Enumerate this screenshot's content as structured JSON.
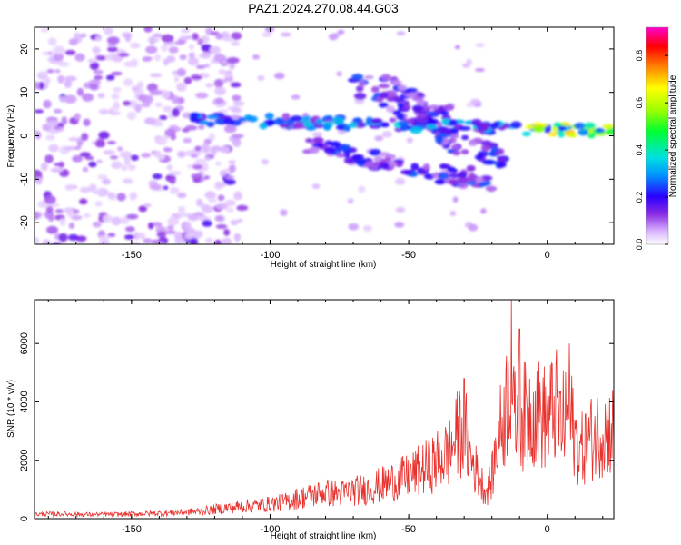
{
  "title": "PAZ1.2024.270.08.44.G03",
  "chart_data": [
    {
      "type": "heatmap",
      "xlabel": "Height of straight line (km)",
      "ylabel": "Frequency (Hz)",
      "xlim": [
        -185,
        24
      ],
      "ylim": [
        -25,
        25
      ],
      "xticks": [
        -150,
        -100,
        -50,
        0
      ],
      "yticks": [
        -20,
        -10,
        0,
        10,
        20
      ],
      "colorbar": {
        "label": "Normalized spectral amplitude",
        "range": [
          0,
          0.92
        ],
        "ticks": [
          0.0,
          0.2,
          0.4,
          0.6,
          0.8
        ],
        "colormap": "rainbow (white-purple-blue-cyan-green-yellow-red-magenta)"
      },
      "features": [
        {
          "name": "central tone",
          "x": [
            -128,
            24
          ],
          "y_start": 4,
          "y_end": 1,
          "peak_amplitude": 0.8
        },
        {
          "name": "upper scattered branches",
          "x": [
            -70,
            -15
          ],
          "y_start": 12,
          "y_end": -6
        },
        {
          "name": "lower branch",
          "x": [
            -90,
            -20
          ],
          "y_start": -2,
          "y_end": -11
        },
        {
          "name": "diffuse noise",
          "x": [
            -185,
            -120
          ],
          "y": [
            -25,
            25
          ],
          "amplitude": "low"
        }
      ]
    },
    {
      "type": "line",
      "xlabel": "Height of straight line (km)",
      "ylabel": "SNR (10 * v/v)",
      "xlim": [
        -185,
        24
      ],
      "ylim": [
        0,
        7500
      ],
      "xticks": [
        -150,
        -100,
        -50,
        0
      ],
      "yticks": [
        0,
        2000,
        4000,
        6000
      ],
      "color": "#e8302c",
      "x": [
        -185,
        -175,
        -165,
        -155,
        -145,
        -135,
        -125,
        -120,
        -115,
        -110,
        -105,
        -100,
        -95,
        -90,
        -85,
        -80,
        -75,
        -70,
        -65,
        -60,
        -55,
        -50,
        -45,
        -40,
        -35,
        -33,
        -30,
        -28,
        -25,
        -22,
        -20,
        -18,
        -15,
        -13,
        -12,
        -10,
        -8,
        -5,
        -3,
        0,
        3,
        5,
        8,
        10,
        12,
        15,
        18,
        20,
        24
      ],
      "y": [
        150,
        160,
        140,
        150,
        170,
        200,
        250,
        320,
        380,
        420,
        450,
        500,
        560,
        700,
        800,
        900,
        850,
        950,
        1000,
        1150,
        1300,
        1450,
        1700,
        1950,
        2300,
        2800,
        3200,
        2200,
        1500,
        900,
        1400,
        2600,
        3800,
        5200,
        3300,
        3600,
        3500,
        3800,
        3600,
        3400,
        3900,
        3200,
        3600,
        2800,
        2300,
        2700,
        2900,
        3100,
        3000
      ],
      "spikes": [
        [
          -33,
          4100
        ],
        [
          -30,
          4800
        ],
        [
          -13,
          7500
        ],
        [
          -10,
          6500
        ],
        [
          8,
          6000
        ]
      ]
    }
  ]
}
